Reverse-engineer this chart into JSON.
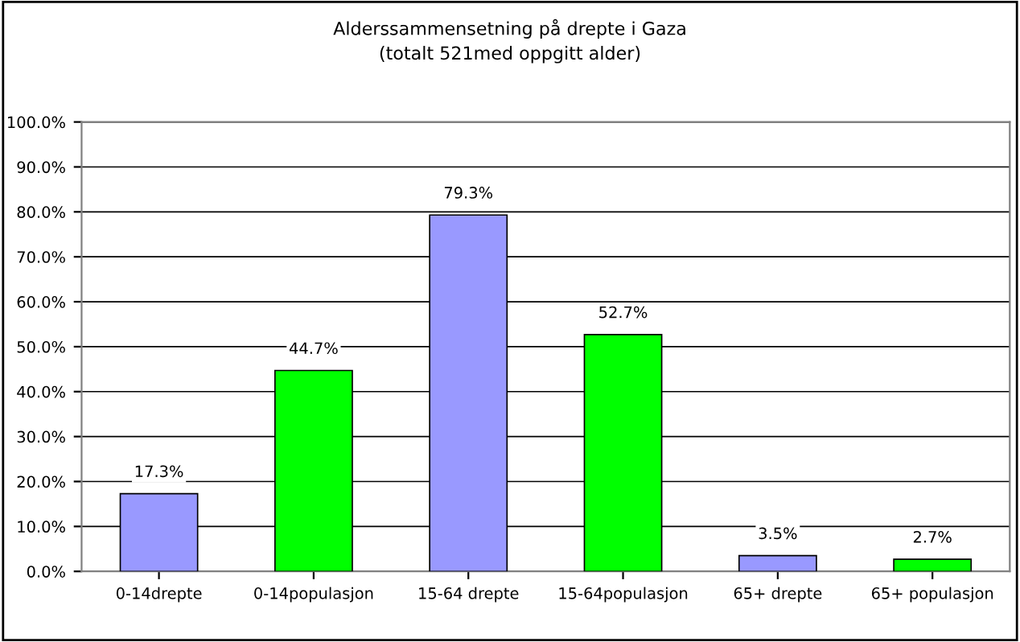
{
  "chart_data": {
    "type": "bar",
    "title": "Alderssammensetning på drepte i Gaza",
    "subtitle": "(totalt 521med oppgitt alder)",
    "categories": [
      "0-14drepte",
      "0-14populasjon",
      "15-64 drepte",
      "15-64populasjon",
      "65+ drepte",
      "65+ populasjon"
    ],
    "values": [
      17.3,
      44.7,
      79.3,
      52.7,
      3.5,
      2.7
    ],
    "colors": [
      "#9999ff",
      "#00ff00",
      "#9999ff",
      "#00ff00",
      "#9999ff",
      "#00ff00"
    ],
    "value_labels": [
      "17.3%",
      "44.7%",
      "79.3%",
      "52.7%",
      "3.5%",
      "2.7%"
    ],
    "ylim": [
      0,
      100
    ],
    "yticks": [
      {
        "value": 0,
        "label": "0.0%"
      },
      {
        "value": 10,
        "label": "10.0%"
      },
      {
        "value": 20,
        "label": "20.0%"
      },
      {
        "value": 30,
        "label": "30.0%"
      },
      {
        "value": 40,
        "label": "40.0%"
      },
      {
        "value": 50,
        "label": "50.0%"
      },
      {
        "value": 60,
        "label": "60.0%"
      },
      {
        "value": 70,
        "label": "70.0%"
      },
      {
        "value": 80,
        "label": "80.0%"
      },
      {
        "value": 90,
        "label": "90.0%"
      },
      {
        "value": 100,
        "label": "100.0%"
      }
    ],
    "grid": "y",
    "legend": false
  }
}
